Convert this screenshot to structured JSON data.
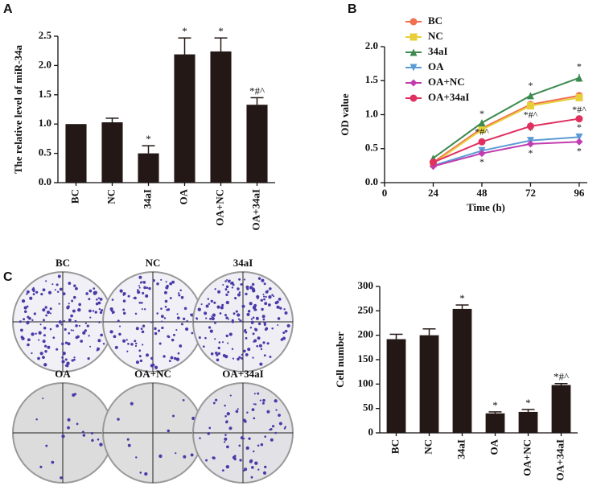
{
  "panel_labels": [
    "A",
    "B",
    "C"
  ],
  "dish_labels": [
    "BC",
    "NC",
    "34aI",
    "OA",
    "OA+NC",
    "OA+34aI"
  ],
  "chart_data": [
    {
      "type": "bar",
      "y_label": "The relative level of miR-34a",
      "color": "#231815",
      "categories": [
        "BC",
        "NC",
        "34aI",
        "OA",
        "OA+NC",
        "OA+34aI"
      ],
      "values": [
        1.0,
        1.03,
        0.5,
        2.19,
        2.24,
        1.33
      ],
      "errors": [
        0,
        0.07,
        0.13,
        0.28,
        0.23,
        0.12
      ],
      "annotations": [
        null,
        null,
        "*",
        "*",
        "*",
        "*#^"
      ],
      "ylim": [
        0,
        2.5
      ],
      "yticks": [
        {
          "value": 0,
          "label": "0.0"
        },
        0.5,
        {
          "value": 1,
          "label": "1.0"
        },
        1.5,
        {
          "value": 2,
          "label": "2.0"
        },
        2.5
      ]
    },
    {
      "type": "line",
      "x_label": "Time (h)",
      "y_label": "OD value",
      "x": [
        24,
        48,
        72,
        96
      ],
      "xlim": [
        0,
        100
      ],
      "xticks": [
        0,
        24,
        48,
        72,
        96
      ],
      "ylim": [
        0,
        2
      ],
      "yticks": [
        {
          "value": 0,
          "label": "0.0"
        },
        0.5,
        {
          "value": 1,
          "label": "1.0"
        },
        1.5,
        {
          "value": 2,
          "label": "2.0"
        }
      ],
      "series": [
        {
          "name": "BC",
          "color": "#f07050",
          "marker": "circle",
          "values": [
            0.3,
            0.8,
            1.15,
            1.28
          ],
          "errors": [
            0.02,
            0.03,
            0.04,
            0.04
          ],
          "annotations": [
            null,
            null,
            null,
            null
          ]
        },
        {
          "name": "NC",
          "color": "#e8cf3a",
          "marker": "square",
          "values": [
            0.28,
            0.78,
            1.13,
            1.25
          ],
          "errors": [
            0.02,
            0.03,
            0.04,
            0.04
          ],
          "annotations": [
            null,
            null,
            null,
            null
          ]
        },
        {
          "name": "34aI",
          "color": "#3c8a50",
          "marker": "triangle-up",
          "values": [
            0.36,
            0.88,
            1.28,
            1.54
          ],
          "errors": [
            0.02,
            0.03,
            0.04,
            0.06
          ],
          "annotations": [
            null,
            "*",
            "*",
            "*"
          ]
        },
        {
          "name": "OA",
          "color": "#5b9bd5",
          "marker": "triangle-down",
          "values": [
            0.25,
            0.47,
            0.62,
            0.67
          ],
          "errors": [
            0.02,
            0.03,
            0.04,
            0.04
          ],
          "annotations": [
            null,
            "*",
            "*",
            "*"
          ]
        },
        {
          "name": "OA+NC",
          "color": "#c03cb0",
          "marker": "diamond",
          "values": [
            0.24,
            0.43,
            0.57,
            0.6
          ],
          "errors": [
            0.02,
            0.03,
            0.04,
            0.04
          ],
          "annotations": [
            null,
            "*",
            "*",
            "*"
          ]
        },
        {
          "name": "OA+34aI",
          "color": "#e03060",
          "marker": "circle",
          "values": [
            0.3,
            0.6,
            0.83,
            0.94
          ],
          "errors": [
            0.02,
            0.04,
            0.06,
            0.03
          ],
          "annotations": [
            null,
            "*#^",
            "*#^",
            "*#^"
          ]
        }
      ]
    },
    {
      "type": "bar",
      "y_label": "Cell number",
      "color": "#231815",
      "categories": [
        "BC",
        "NC",
        "34aI",
        "OA",
        "OA+NC",
        "OA+34aI"
      ],
      "values": [
        192,
        200,
        254,
        40,
        43,
        98
      ],
      "errors": [
        10,
        13,
        8,
        3,
        5,
        3
      ],
      "annotations": [
        null,
        null,
        "*",
        "*",
        "*",
        "*#^"
      ],
      "ylim": [
        0,
        300
      ],
      "yticks": [
        0,
        50,
        100,
        150,
        200,
        250,
        300
      ]
    }
  ]
}
